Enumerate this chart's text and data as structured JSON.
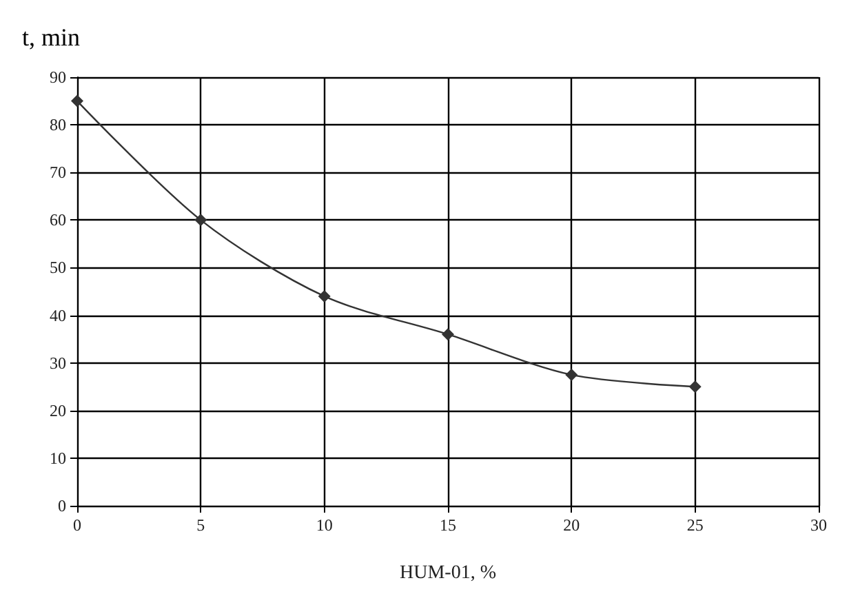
{
  "chart_data": {
    "type": "line",
    "ylabel": "t, min",
    "xlabel": "HUM-01, %",
    "x": [
      0,
      5,
      10,
      15,
      20,
      25
    ],
    "series": [
      {
        "color": "#333333",
        "values": [
          85,
          60,
          44,
          36,
          27.5,
          25
        ]
      }
    ],
    "xlim": [
      0,
      30
    ],
    "xticks": [
      0,
      5,
      10,
      15,
      20,
      25,
      30
    ],
    "ylim": [
      0,
      90
    ],
    "yticks": [
      0,
      10,
      20,
      30,
      40,
      50,
      60,
      70,
      80,
      90
    ],
    "grid": true,
    "marker": "diamond",
    "line_style": "solid"
  }
}
